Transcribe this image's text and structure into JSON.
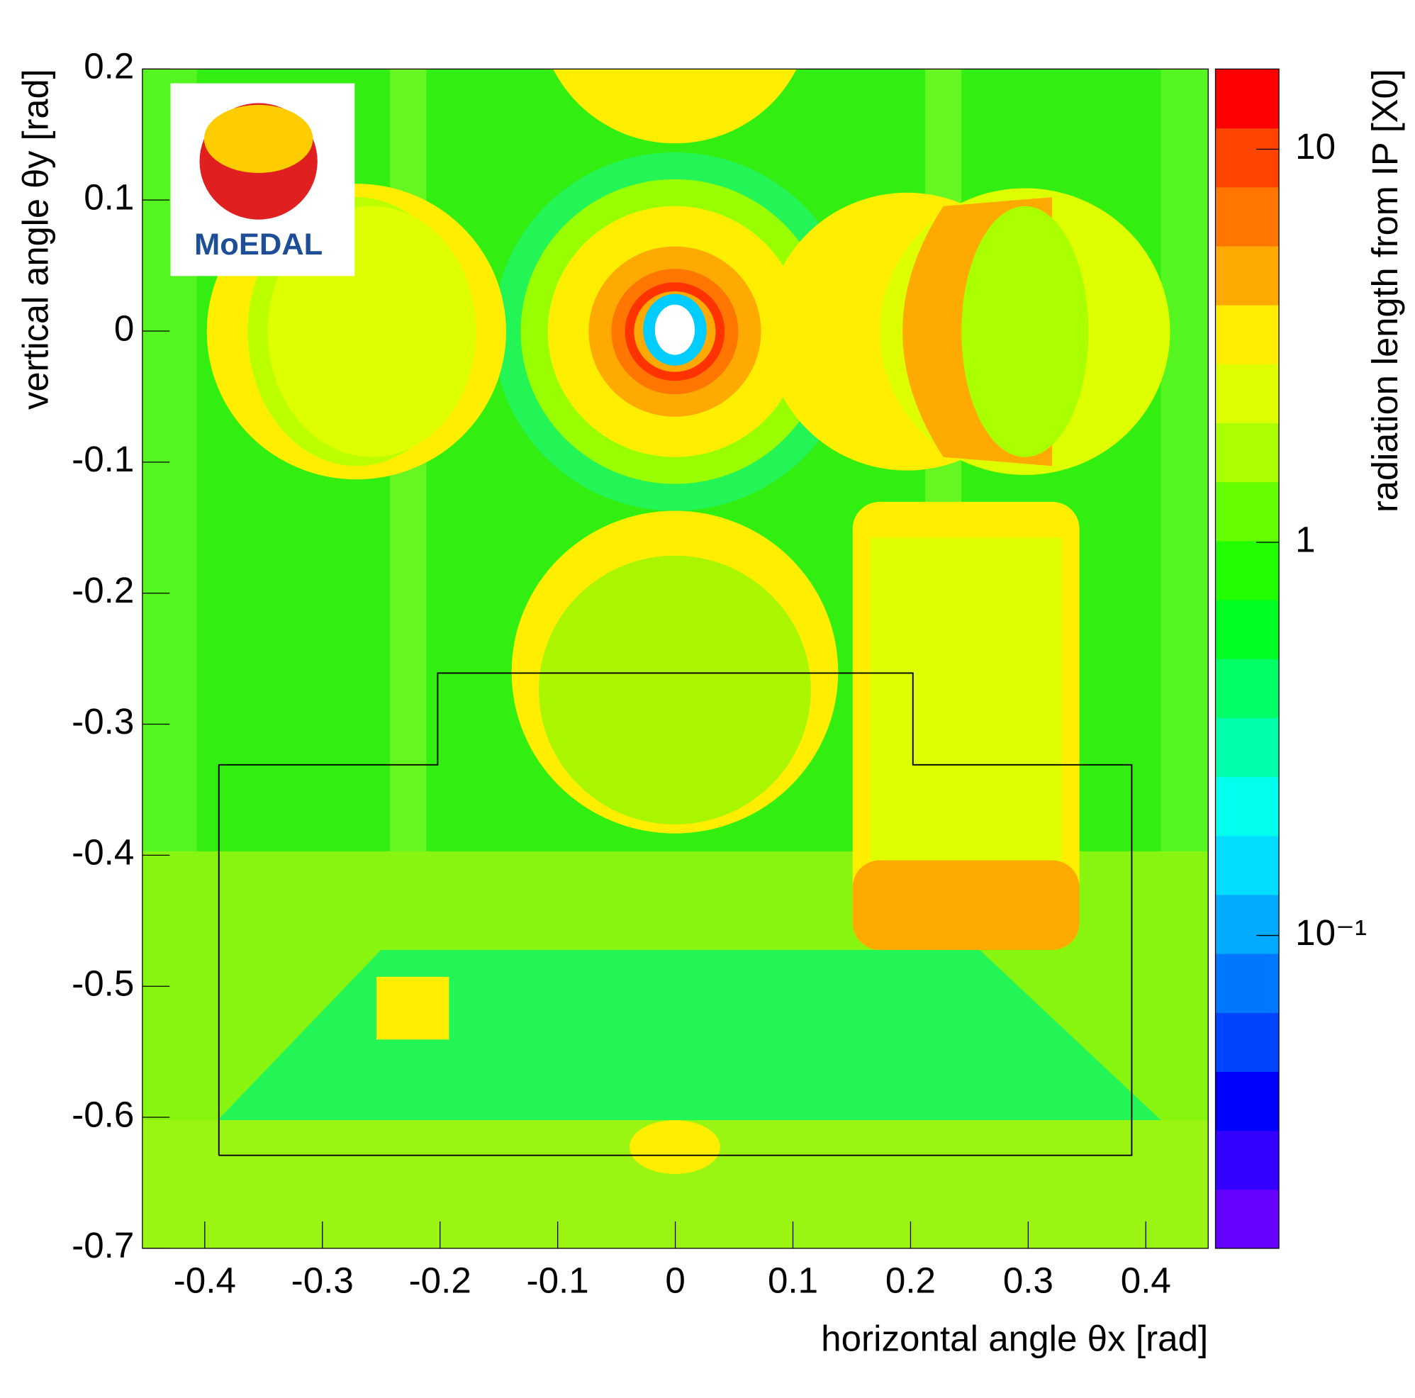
{
  "chart_data": {
    "type": "heatmap",
    "logo_text": "MoEDAL",
    "xlabel": "horizontal angle θx [rad]",
    "ylabel": "vertical angle θy [rad]",
    "colorbar_label": "radiation length from IP [X0]",
    "xlim": [
      -0.453,
      0.453
    ],
    "ylim": [
      -0.7,
      0.2
    ],
    "xticks": [
      -0.4,
      -0.3,
      -0.2,
      -0.1,
      0,
      0.1,
      0.2,
      0.3,
      0.4
    ],
    "yticks": [
      0.2,
      0.1,
      0,
      -0.1,
      -0.2,
      -0.3,
      -0.4,
      -0.5,
      -0.6,
      -0.7
    ],
    "zlim": [
      0.016,
      16
    ],
    "zscale": "log",
    "zticks": [
      10,
      1,
      {
        "value": 0.1,
        "label": "10⁻¹"
      }
    ],
    "colors": [
      "#6600ff",
      "#3300ff",
      "#0000ff",
      "#0044ff",
      "#0077ff",
      "#00aaff",
      "#00ddff",
      "#00ffee",
      "#00ffaa",
      "#00ff66",
      "#00ff22",
      "#22ff00",
      "#66ff00",
      "#aaff00",
      "#ddff00",
      "#ffee00",
      "#ffaa00",
      "#ff7700",
      "#ff4400",
      "#ff0000"
    ],
    "outline": {
      "x": [
        -0.388,
        -0.388,
        -0.202,
        -0.202,
        0.202,
        0.202,
        0.388,
        0.388,
        -0.388
      ],
      "y": [
        -0.629,
        -0.331,
        -0.331,
        -0.261,
        -0.261,
        -0.331,
        -0.331,
        -0.629,
        -0.629
      ]
    }
  }
}
